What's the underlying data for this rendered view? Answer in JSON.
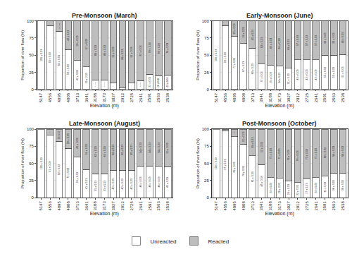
{
  "chart_data": [
    {
      "type": "bar",
      "title": "Pre-Monsoon (March)",
      "x_label": "Elevation (m)",
      "y_label": "Proportion of river flow (%)",
      "categories": [
        "5147",
        "4556",
        "4095",
        "4008",
        "3713",
        "3641",
        "3188",
        "3173",
        "3027",
        "2912",
        "2725",
        "2641",
        "2591",
        "2563",
        "2538"
      ],
      "series": [
        {
          "name": "Unreacted",
          "color": "#ffffff",
          "values": [
            100,
            93,
            85,
            58,
            42,
            33,
            14,
            14,
            9,
            2,
            9,
            13,
            22,
            20,
            21
          ],
          "value_labels": [
            "100 ± 0.03",
            "93 ± 0.03",
            "85 ± 0.03",
            "58 ± 0.03",
            "42 ± 0.03",
            "33 ± 0.03",
            "14 ± 0.03",
            "14 ± 0.03",
            "9 ± 0.03",
            "2 ± 0.03",
            "9 ± 0.03",
            "13 ± 0.03",
            "22 ± 0.03",
            "20 ± 0.03",
            "21 ± 0.03"
          ]
        },
        {
          "name": "Reacted",
          "color": "#bebebe",
          "values": [
            null,
            7,
            15,
            42,
            58,
            67,
            86,
            86,
            91,
            98,
            91,
            87,
            78,
            80,
            79
          ],
          "value_labels": [
            null,
            "7 ± 0.03",
            "15 ± 0.03",
            "42 ± 0.03",
            "58 ± 0.03",
            "67 ± 0.03",
            "86 ± 0.03",
            "86 ± 0.03",
            "91 ± 0.03",
            "98 ± 0.03",
            "91 ± 0.03",
            "87 ± 0.03",
            "78 ± 0.03",
            "80 ± 0.03",
            "79 ± 0.03"
          ]
        }
      ],
      "ylim": [
        0,
        100
      ],
      "yticks": [
        0,
        25,
        50,
        75,
        100
      ],
      "stacked": true,
      "data_labels": true,
      "grid": true,
      "legend": "bottom"
    },
    {
      "type": "bar",
      "title": "Early-Monsoon (June)",
      "x_label": "Elevation (m)",
      "y_label": "Proportion of river flow (%)",
      "categories": [
        "5147",
        "4556",
        "4095",
        "4008",
        "3713",
        "3641",
        "3188",
        "3173",
        "3027",
        "2912",
        "2725",
        "2641",
        "2591",
        "2563",
        "2538"
      ],
      "series": [
        {
          "name": "Unreacted",
          "color": "#ffffff",
          "values": [
            100,
            93,
            77,
            67,
            60,
            37,
            35,
            34,
            31,
            43,
            43,
            43,
            50,
            50,
            51
          ],
          "value_labels": [
            "100 ± 0.03",
            "93 ± 0.03",
            "77 ± 0.03",
            "67 ± 0.03",
            "60 ± 0.03",
            "37 ± 0.03",
            "35 ± 0.03",
            "34 ± 0.03",
            "31 ± 0.03",
            "43 ± 0.03",
            "43 ± 0.03",
            "43 ± 0.03",
            "50 ± 0.03",
            "50 ± 0.03",
            "51 ± 0.03"
          ]
        },
        {
          "name": "Reacted",
          "color": "#bebebe",
          "values": [
            null,
            7,
            23,
            33,
            40,
            63,
            65,
            66,
            69,
            57,
            57,
            57,
            50,
            50,
            49
          ],
          "value_labels": [
            null,
            "7 ± 0.03",
            "23 ± 0.03",
            "33 ± 0.03",
            "40 ± 0.03",
            "63 ± 0.03",
            "65 ± 0.03",
            "66 ± 0.03",
            "69 ± 0.03",
            "57 ± 0.03",
            "57 ± 0.03",
            "57 ± 0.03",
            "50 ± 0.03",
            "50 ± 0.03",
            "49 ± 0.03"
          ]
        }
      ],
      "ylim": [
        0,
        100
      ],
      "yticks": [
        0,
        25,
        50,
        75,
        100
      ],
      "stacked": true,
      "data_labels": true,
      "grid": true,
      "legend": "bottom"
    },
    {
      "type": "bar",
      "title": "Late-Monsoon (August)",
      "x_label": "Elevation (m)",
      "y_label": "Proportion of river flow (%)",
      "categories": [
        "5147",
        "4556",
        "4095",
        "4008",
        "3713",
        "3641",
        "3188",
        "3173",
        "3027",
        "2912",
        "2725",
        "2641",
        "2591",
        "2563",
        "2538"
      ],
      "series": [
        {
          "name": "Unreacted",
          "color": "#ffffff",
          "values": [
            100,
            91,
            82,
            72,
            59,
            41,
            35,
            35,
            40,
            40,
            40,
            46,
            46,
            46,
            45
          ],
          "value_labels": [
            "100 ± 0.03",
            "91 ± 0.03",
            "82 ± 0.03",
            "72 ± 0.03",
            "59 ± 0.03",
            "41 ± 0.03",
            "35 ± 0.03",
            "35 ± 0.03",
            "40 ± 0.03",
            "40 ± 0.03",
            "40 ± 0.03",
            "46 ± 0.03",
            "46 ± 0.03",
            "46 ± 0.03",
            "45 ± 0.03"
          ]
        },
        {
          "name": "Reacted",
          "color": "#bebebe",
          "values": [
            null,
            9,
            18,
            28,
            41,
            59,
            65,
            65,
            60,
            60,
            60,
            54,
            54,
            54,
            55
          ],
          "value_labels": [
            null,
            "9 ± 0.03",
            "18 ± 0.03",
            "28 ± 0.03",
            "41 ± 0.03",
            "59 ± 0.03",
            "65 ± 0.03",
            "65 ± 0.03",
            "60 ± 0.03",
            "60 ± 0.03",
            "60 ± 0.03",
            "54 ± 0.03",
            "54 ± 0.03",
            "54 ± 0.03",
            "55 ± 0.03"
          ]
        }
      ],
      "ylim": [
        0,
        100
      ],
      "yticks": [
        0,
        25,
        50,
        75,
        100
      ],
      "stacked": true,
      "data_labels": true,
      "grid": true,
      "legend": "bottom"
    },
    {
      "type": "bar",
      "title": "Post-Monsoon (October)",
      "x_label": "Elevation (m)",
      "y_label": "Proportion of river flow (%)",
      "categories": [
        "5147",
        "4556",
        "4095",
        "4008",
        "3713",
        "3641",
        "3188",
        "3173",
        "3027",
        "2912",
        "2725",
        "2641",
        "2591",
        "2563",
        "2538"
      ],
      "series": [
        {
          "name": "Unreacted",
          "color": "#ffffff",
          "values": [
            100,
            97,
            89,
            78,
            61,
            48,
            29,
            28,
            24,
            22,
            27,
            29,
            31,
            36,
            36
          ],
          "value_labels": [
            "100 ± 0.03",
            "97 ± 0.03",
            "89 ± 0.03",
            "78 ± 0.03",
            "61 ± 0.03",
            "48 ± 0.03",
            "29 ± 0.03",
            "28 ± 0.03",
            "24 ± 0.03",
            "22 ± 0.03",
            "27 ± 0.03",
            "29 ± 0.03",
            "31 ± 0.03",
            "36 ± 0.03",
            "36 ± 0.03"
          ]
        },
        {
          "name": "Reacted",
          "color": "#bebebe",
          "values": [
            null,
            3,
            11,
            22,
            39,
            52,
            71,
            72,
            76,
            78,
            73,
            71,
            69,
            64,
            64
          ],
          "value_labels": [
            null,
            "3 ± 0.03",
            "11 ± 0.03",
            "22 ± 0.03",
            "39 ± 0.03",
            "52 ± 0.03",
            "71 ± 0.03",
            "72 ± 0.03",
            "76 ± 0.03",
            "78 ± 0.03",
            "73 ± 0.03",
            "71 ± 0.03",
            "69 ± 0.03",
            "64 ± 0.03",
            "64 ± 0.03"
          ]
        }
      ],
      "ylim": [
        0,
        100
      ],
      "yticks": [
        0,
        25,
        50,
        75,
        100
      ],
      "stacked": true,
      "data_labels": true,
      "grid": true,
      "legend": "bottom"
    }
  ]
}
